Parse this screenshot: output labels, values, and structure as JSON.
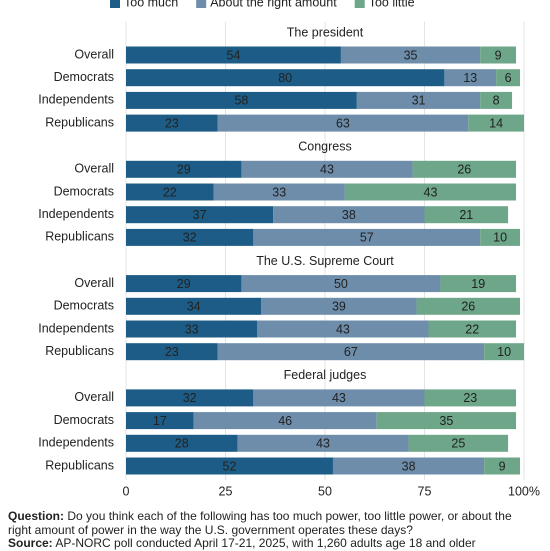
{
  "chart_data": {
    "type": "bar",
    "orientation": "horizontal",
    "stacked": true,
    "grid": true,
    "legend_position": "top",
    "series": [
      {
        "name": "Too much",
        "color": "#1c5c86"
      },
      {
        "name": "About the right amount",
        "color": "#6d8dab"
      },
      {
        "name": "Too little",
        "color": "#6da688"
      }
    ],
    "panels": [
      {
        "title": "The president",
        "categories": [
          "Overall",
          "Democrats",
          "Independents",
          "Republicans"
        ],
        "series": [
          {
            "values": [
              54,
              80,
              58,
              23
            ]
          },
          {
            "values": [
              35,
              13,
              31,
              63
            ]
          },
          {
            "values": [
              9,
              6,
              8,
              14
            ]
          }
        ]
      },
      {
        "title": "Congress",
        "categories": [
          "Overall",
          "Democrats",
          "Independents",
          "Republicans"
        ],
        "series": [
          {
            "values": [
              29,
              22,
              37,
              32
            ]
          },
          {
            "values": [
              43,
              33,
              38,
              57
            ]
          },
          {
            "values": [
              26,
              43,
              21,
              10
            ]
          }
        ]
      },
      {
        "title": "The U.S. Supreme Court",
        "categories": [
          "Overall",
          "Democrats",
          "Independents",
          "Republicans"
        ],
        "series": [
          {
            "values": [
              29,
              34,
              33,
              23
            ]
          },
          {
            "values": [
              50,
              39,
              43,
              67
            ]
          },
          {
            "values": [
              19,
              26,
              22,
              10
            ]
          }
        ]
      },
      {
        "title": "Federal judges",
        "categories": [
          "Overall",
          "Democrats",
          "Independents",
          "Republicans"
        ],
        "series": [
          {
            "values": [
              32,
              17,
              28,
              52
            ]
          },
          {
            "values": [
              43,
              46,
              43,
              38
            ]
          },
          {
            "values": [
              23,
              35,
              25,
              9
            ]
          }
        ]
      }
    ],
    "xlim": [
      0,
      100
    ],
    "xticks": [
      0,
      25,
      50,
      75,
      {
        "value": 100,
        "label": "100%"
      }
    ],
    "question_label": "Question:",
    "question": "Do you think each of the following has too much power, too little power, or about the right amount of power in the way the U.S. government operates these days?",
    "source_label": "Source:",
    "source": "AP-NORC poll conducted April 17-21, 2025, with 1,260 adults age 18 and older"
  }
}
